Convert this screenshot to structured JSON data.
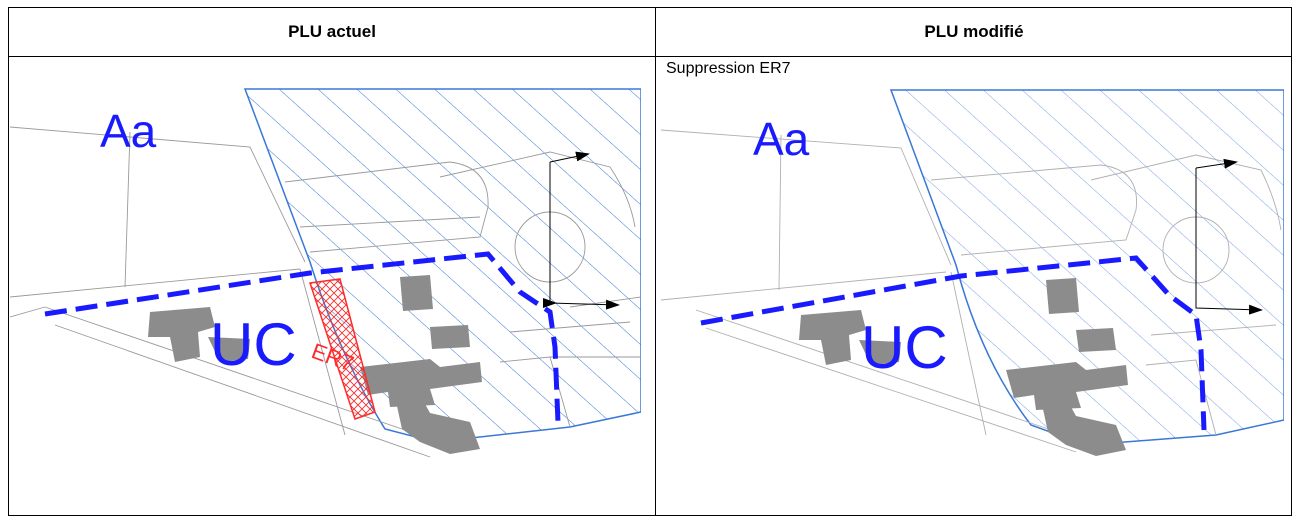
{
  "table": {
    "header_left": "PLU actuel",
    "header_right": "PLU modifié"
  },
  "right_panel": {
    "caption": "Suppression ER7"
  },
  "map_labels": {
    "zone_a": "Aa",
    "zone_uc": "UC",
    "reserved": "ER7"
  },
  "colors": {
    "zone_line": "#1a1aff",
    "hatch": "#3a78d6",
    "reserved": "#ff2a2a",
    "buildings": "#8c8c8c",
    "parcels": "#9a9a9a"
  }
}
